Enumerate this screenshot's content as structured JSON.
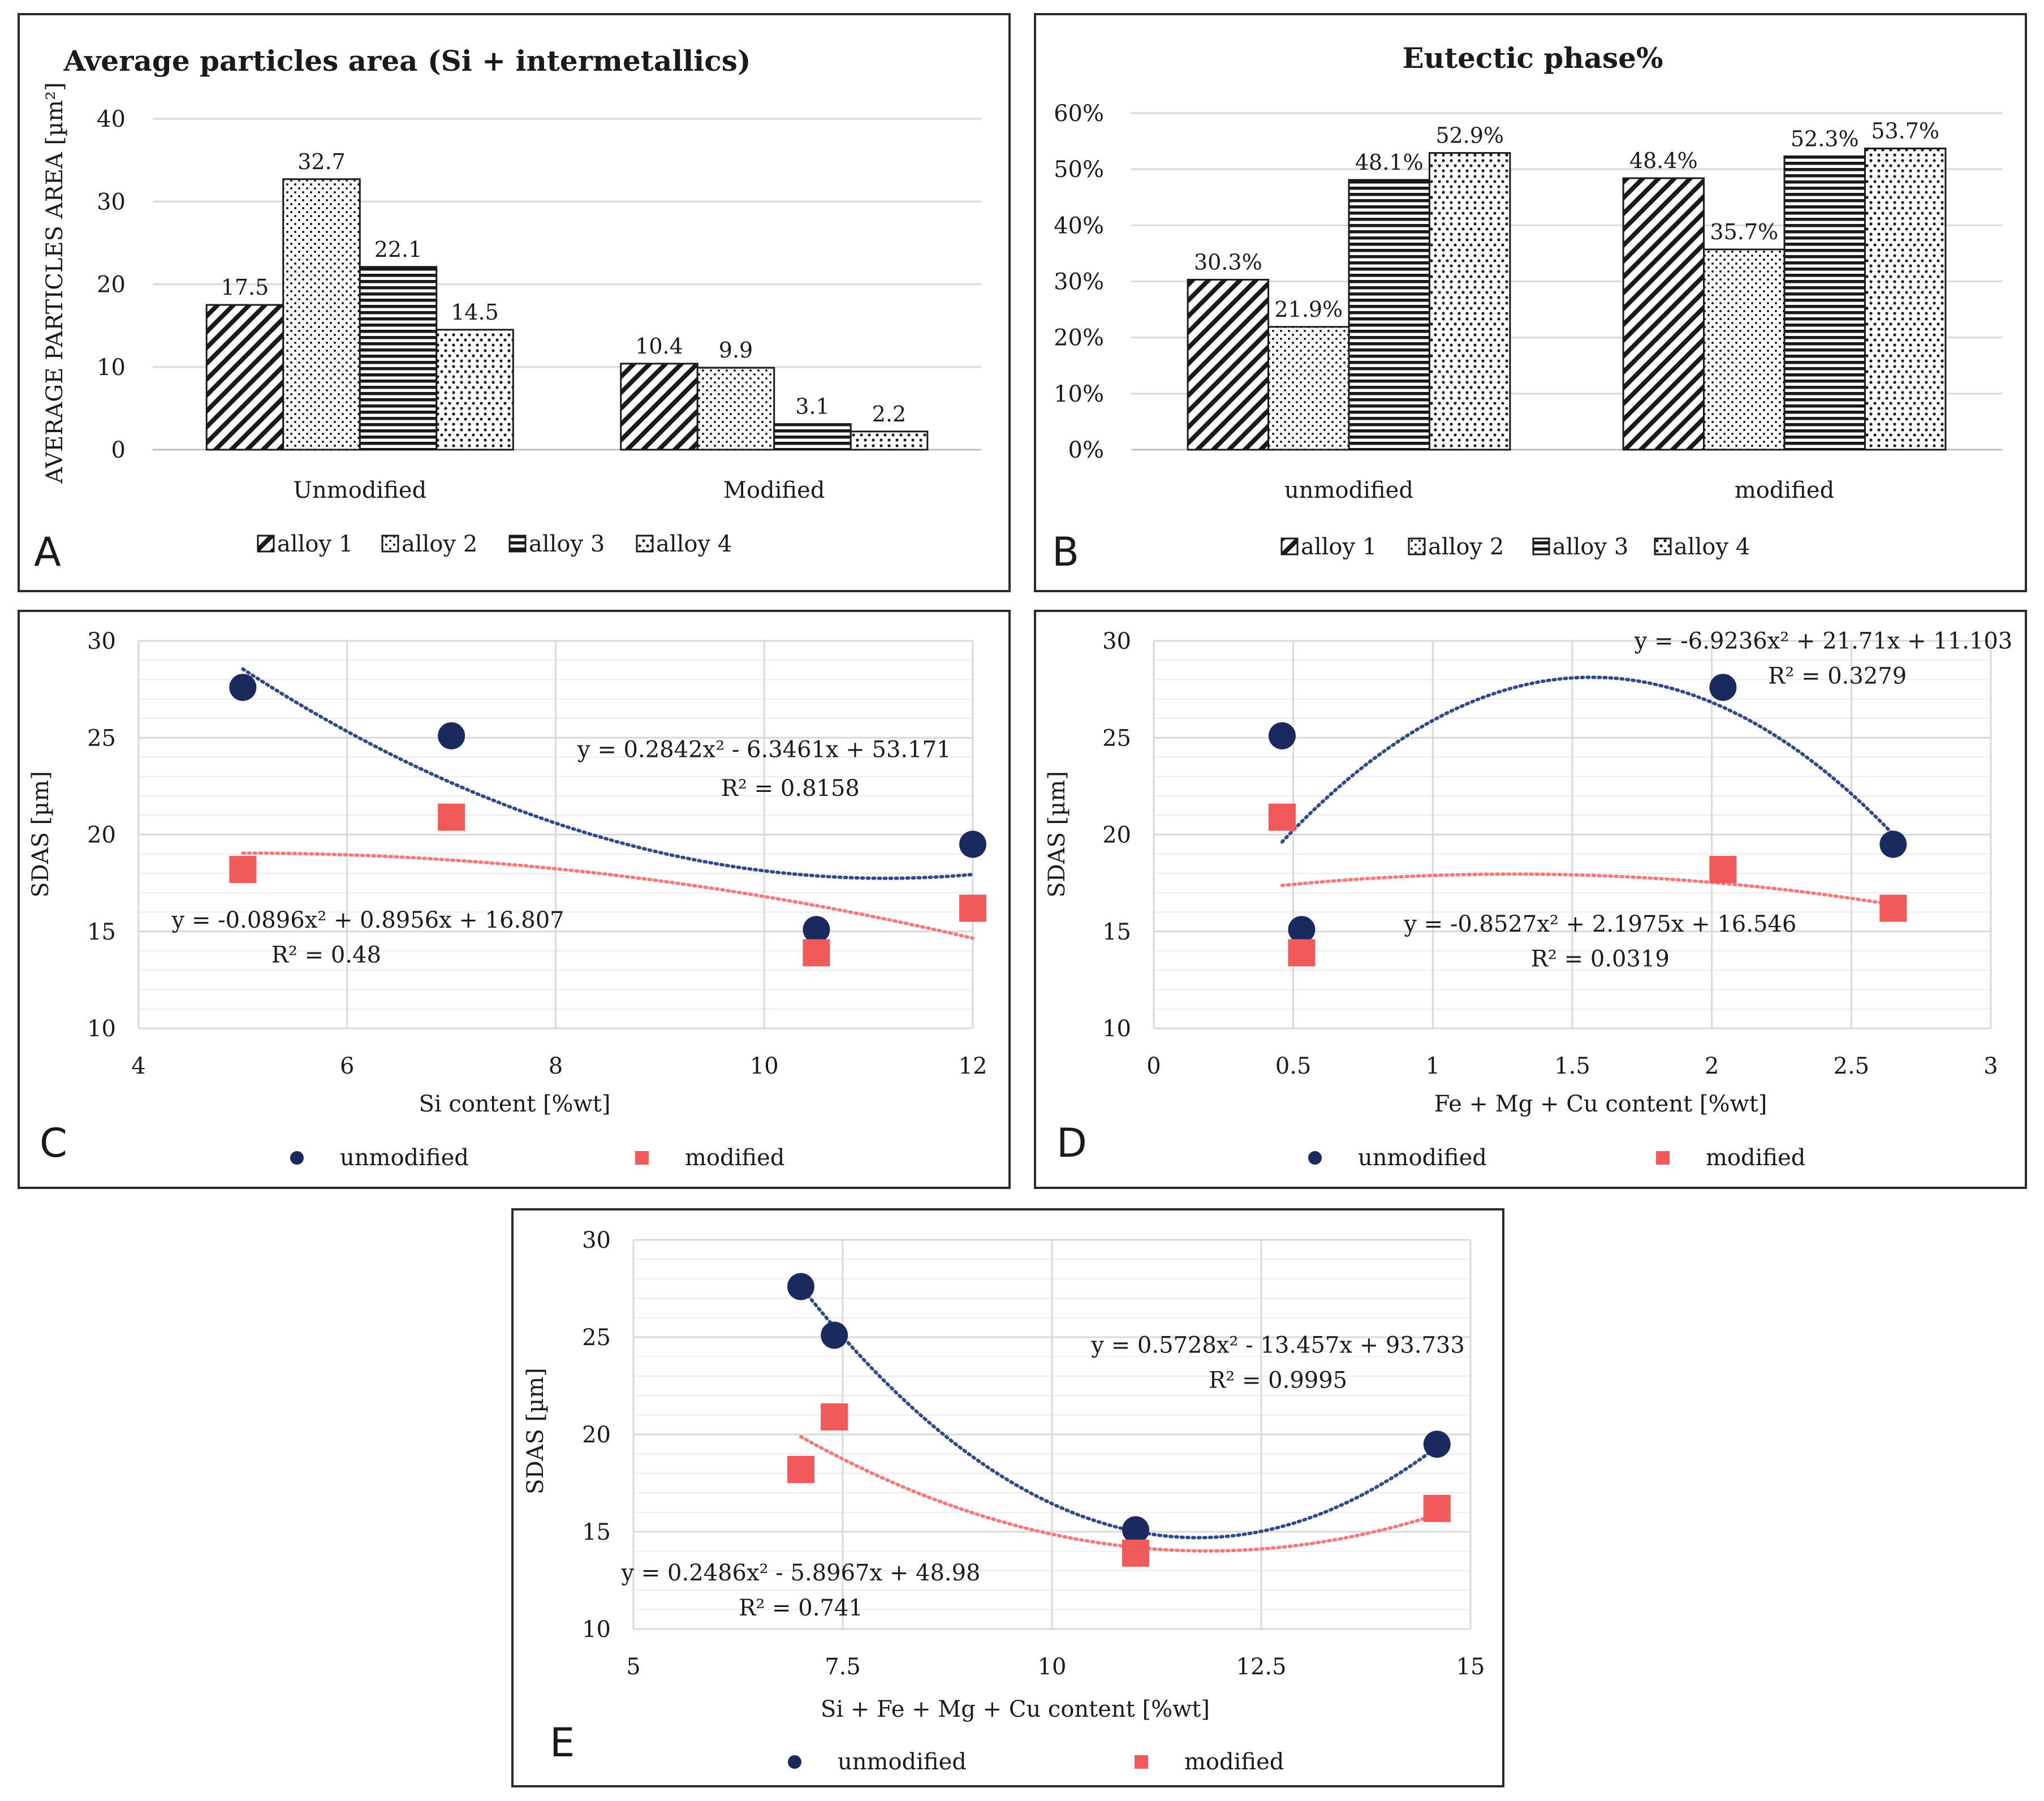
{
  "colors": {
    "unmodified": "#1b2a5e",
    "modified": "#f05a5a",
    "trend_unmodified": "#2e4a8a",
    "trend_modified": "#f57a7a",
    "bar_edge": "#1a1a1a"
  },
  "bar_patterns": [
    "diagonal-hatch",
    "dots",
    "horizontal-lines",
    "zigzag-dots"
  ],
  "chart_data": [
    {
      "panel": "A",
      "type": "bar",
      "title": "Average particles area (Si + intermetallics)",
      "ylabel": "AVERAGE PARTICLES AREA [µm²]",
      "xlabel": "",
      "ylim": [
        0,
        40
      ],
      "yticks": [
        0,
        10,
        20,
        30,
        40
      ],
      "ytick_labels": [
        "0",
        "10",
        "20",
        "30",
        "40"
      ],
      "categories": [
        "Unmodified",
        "Modified"
      ],
      "series": [
        {
          "name": "alloy 1",
          "values": [
            17.5,
            10.4
          ],
          "labels": [
            "17.5",
            "10.4"
          ]
        },
        {
          "name": "alloy 2",
          "values": [
            32.7,
            9.9
          ],
          "labels": [
            "32.7",
            "9.9"
          ]
        },
        {
          "name": "alloy 3",
          "values": [
            22.1,
            3.1
          ],
          "labels": [
            "22.1",
            "3.1"
          ]
        },
        {
          "name": "alloy 4",
          "values": [
            14.5,
            2.2
          ],
          "labels": [
            "14.5",
            "2.2"
          ]
        }
      ],
      "legend": "bottom"
    },
    {
      "panel": "B",
      "type": "bar",
      "title": "Eutectic phase%",
      "ylabel": "",
      "xlabel": "",
      "ylim": [
        0,
        60
      ],
      "yticks": [
        0,
        10,
        20,
        30,
        40,
        50,
        60
      ],
      "ytick_labels": [
        "0%",
        "10%",
        "20%",
        "30%",
        "40%",
        "50%",
        "60%"
      ],
      "categories": [
        "unmodified",
        "modified"
      ],
      "series": [
        {
          "name": "alloy 1",
          "values": [
            30.3,
            48.4
          ],
          "labels": [
            "30.3%",
            "48.4%"
          ]
        },
        {
          "name": "alloy 2",
          "values": [
            21.9,
            35.7
          ],
          "labels": [
            "21.9%",
            "35.7%"
          ]
        },
        {
          "name": "alloy 3",
          "values": [
            48.1,
            52.3
          ],
          "labels": [
            "48.1%",
            "52.3%"
          ]
        },
        {
          "name": "alloy 4",
          "values": [
            52.9,
            53.7
          ],
          "labels": [
            "52.9%",
            "53.7%"
          ]
        }
      ],
      "legend": "bottom"
    },
    {
      "panel": "C",
      "type": "scatter",
      "xlabel": "Si content [%wt]",
      "ylabel": "SDAS [µm]",
      "xlim": [
        4,
        12
      ],
      "ylim": [
        10,
        30
      ],
      "xticks": [
        4,
        6,
        8,
        10,
        12
      ],
      "xtick_labels": [
        "4",
        "6",
        "8",
        "10",
        "12"
      ],
      "yticks": [
        10,
        15,
        20,
        25,
        30
      ],
      "ytick_labels": [
        "10",
        "15",
        "20",
        "25",
        "30"
      ],
      "series": [
        {
          "name": "unmodified",
          "marker": "circle",
          "x": [
            5,
            7,
            10.5,
            12
          ],
          "y": [
            27.6,
            25.1,
            15.1,
            19.5
          ],
          "trend": {
            "a": 0.2842,
            "b": -6.3461,
            "c": 53.171,
            "x0": 5,
            "x1": 12
          }
        },
        {
          "name": "modified",
          "marker": "square",
          "x": [
            5,
            7,
            10.5,
            12
          ],
          "y": [
            18.2,
            20.9,
            13.9,
            16.2
          ],
          "trend": {
            "a": -0.0896,
            "b": 0.8956,
            "c": 16.807,
            "x0": 5,
            "x1": 12
          }
        }
      ],
      "annotations": [
        {
          "text": "y = 0.2842x² - 6.3461x + 53.171",
          "x": 10.0,
          "y": 24.0,
          "anchor": "middle"
        },
        {
          "text": "R² = 0.8158",
          "x": 10.25,
          "y": 22.0,
          "anchor": "middle"
        },
        {
          "text": "y = -0.0896x² + 0.8956x + 16.807",
          "x": 6.2,
          "y": 15.2,
          "anchor": "middle"
        },
        {
          "text": "R² = 0.48",
          "x": 5.8,
          "y": 13.4,
          "anchor": "middle"
        }
      ],
      "legend": "bottom"
    },
    {
      "panel": "D",
      "type": "scatter",
      "xlabel": "Fe + Mg + Cu content [%wt]",
      "ylabel": "SDAS [µm]",
      "xlim": [
        0,
        3
      ],
      "ylim": [
        10,
        30
      ],
      "xticks": [
        0,
        0.5,
        1,
        1.5,
        2,
        2.5,
        3
      ],
      "xtick_labels": [
        "0",
        "0.5",
        "1",
        "1.5",
        "2",
        "2.5",
        "3"
      ],
      "yticks": [
        10,
        15,
        20,
        25,
        30
      ],
      "ytick_labels": [
        "10",
        "15",
        "20",
        "25",
        "30"
      ],
      "series": [
        {
          "name": "unmodified",
          "marker": "circle",
          "x": [
            0.46,
            0.53,
            2.04,
            2.65
          ],
          "y": [
            25.1,
            15.1,
            27.6,
            19.5
          ],
          "trend": {
            "a": -6.9236,
            "b": 21.71,
            "c": 11.103,
            "x0": 0.46,
            "x1": 2.65
          }
        },
        {
          "name": "modified",
          "marker": "square",
          "x": [
            0.46,
            0.53,
            2.04,
            2.65
          ],
          "y": [
            20.9,
            13.9,
            18.2,
            16.2
          ],
          "trend": {
            "a": -0.8527,
            "b": 2.1975,
            "c": 16.546,
            "x0": 0.46,
            "x1": 2.65
          }
        }
      ],
      "annotations": [
        {
          "text": "y = -6.9236x² + 21.71x + 11.103",
          "x": 2.4,
          "y": 29.6,
          "anchor": "middle"
        },
        {
          "text": "R² = 0.3279",
          "x": 2.45,
          "y": 27.8,
          "anchor": "middle"
        },
        {
          "text": "y = -0.8527x² + 2.1975x + 16.546",
          "x": 1.6,
          "y": 15.0,
          "anchor": "middle"
        },
        {
          "text": "R² = 0.0319",
          "x": 1.6,
          "y": 13.2,
          "anchor": "middle"
        }
      ],
      "legend": "bottom"
    },
    {
      "panel": "E",
      "type": "scatter",
      "xlabel": "Si + Fe + Mg + Cu content [%wt]",
      "ylabel": "SDAS [µm]",
      "xlim": [
        5,
        15
      ],
      "ylim": [
        10,
        30
      ],
      "xticks": [
        5,
        7.5,
        10,
        12.5,
        15
      ],
      "xtick_labels": [
        "5",
        "7.5",
        "10",
        "12.5",
        "15"
      ],
      "yticks": [
        10,
        15,
        20,
        25,
        30
      ],
      "ytick_labels": [
        "10",
        "15",
        "20",
        "25",
        "30"
      ],
      "series": [
        {
          "name": "unmodified",
          "marker": "circle",
          "x": [
            7,
            7.4,
            11,
            14.6
          ],
          "y": [
            27.6,
            25.1,
            15.1,
            19.5
          ],
          "trend": {
            "a": 0.5728,
            "b": -13.457,
            "c": 93.733,
            "x0": 7,
            "x1": 14.6
          }
        },
        {
          "name": "modified",
          "marker": "square",
          "x": [
            7,
            7.4,
            11,
            14.6
          ],
          "y": [
            18.2,
            20.9,
            13.9,
            16.2
          ],
          "trend": {
            "a": 0.2486,
            "b": -5.8967,
            "c": 48.98,
            "x0": 7,
            "x1": 14.6
          }
        }
      ],
      "annotations": [
        {
          "text": "y = 0.5728x² - 13.457x + 93.733",
          "x": 12.7,
          "y": 24.2,
          "anchor": "middle"
        },
        {
          "text": "R² = 0.9995",
          "x": 12.7,
          "y": 22.4,
          "anchor": "middle"
        },
        {
          "text": "y = 0.2486x² - 5.8967x + 48.98",
          "x": 7.0,
          "y": 12.5,
          "anchor": "middle"
        },
        {
          "text": "R² = 0.741",
          "x": 7.0,
          "y": 10.7,
          "anchor": "middle"
        }
      ],
      "legend": "bottom"
    }
  ]
}
